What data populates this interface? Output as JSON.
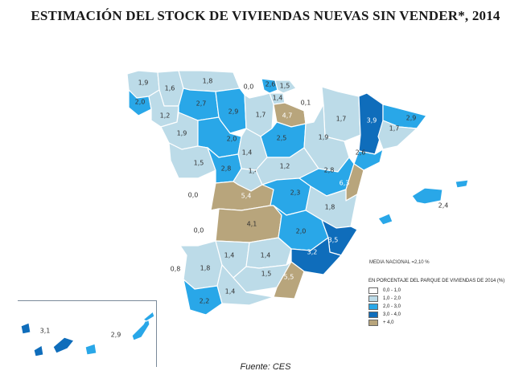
{
  "title": "ESTIMACIÓN DEL STOCK DE VIVIENDAS NUEVAS SIN VENDER*, 2014",
  "media_nacional": "MEDIA NACIONAL =2,10 %",
  "legend": {
    "title": "EN PORCENTAJE DEL PARQUE DE VIVIENDAS DE 2014 (%)",
    "items": [
      {
        "label": "0,0 - 1,0",
        "color": "#ffffff"
      },
      {
        "label": "1,0 - 2,0",
        "color": "#bcdbe8"
      },
      {
        "label": "2,0 - 3,0",
        "color": "#29a7e8"
      },
      {
        "label": "3,0 - 4,0",
        "color": "#0f6dbb"
      },
      {
        "label": "+ 4,0",
        "color": "#b8a57c"
      }
    ]
  },
  "source": "Fuente: CES",
  "provinces": [
    {
      "name": "A Coruña",
      "value": "1,9"
    },
    {
      "name": "Lugo",
      "value": "1,6"
    },
    {
      "name": "Asturias",
      "value": "1,8"
    },
    {
      "name": "Cantabria",
      "value": "0,0"
    },
    {
      "name": "Bizkaia",
      "value": "2,6"
    },
    {
      "name": "Gipuzkoa",
      "value": "1,5"
    },
    {
      "name": "Álava",
      "value": "1,4"
    },
    {
      "name": "Pontevedra",
      "value": "2,0"
    },
    {
      "name": "Ourense",
      "value": "1,2"
    },
    {
      "name": "León",
      "value": "2,7"
    },
    {
      "name": "Palencia",
      "value": "2,9"
    },
    {
      "name": "Burgos",
      "value": "1,7"
    },
    {
      "name": "La Rioja",
      "value": "4,7"
    },
    {
      "name": "Navarra",
      "value": "0,1"
    },
    {
      "name": "Huesca",
      "value": "1,7"
    },
    {
      "name": "Lleida",
      "value": "3,9"
    },
    {
      "name": "Girona",
      "value": "2,9"
    },
    {
      "name": "Barcelona",
      "value": "1,7"
    },
    {
      "name": "Tarragona",
      "value": "2,6"
    },
    {
      "name": "Zamora",
      "value": "1,9"
    },
    {
      "name": "Valladolid",
      "value": "2,0"
    },
    {
      "name": "Soria",
      "value": "2,5"
    },
    {
      "name": "Zaragoza",
      "value": "1,9"
    },
    {
      "name": "Salamanca",
      "value": "1,5"
    },
    {
      "name": "Segovia",
      "value": "1,4"
    },
    {
      "name": "Ávila",
      "value": "2,8"
    },
    {
      "name": "Madrid",
      "value": "1,4"
    },
    {
      "name": "Guadalajara",
      "value": "1,2"
    },
    {
      "name": "Teruel",
      "value": "2,8"
    },
    {
      "name": "Castellón",
      "value": "6,3"
    },
    {
      "name": "Cáceres",
      "value": "0,0"
    },
    {
      "name": "Toledo",
      "value": "5,4"
    },
    {
      "name": "Cuenca",
      "value": "2,3"
    },
    {
      "name": "Valencia",
      "value": "1,8"
    },
    {
      "name": "Badajoz",
      "value": "0,0"
    },
    {
      "name": "Ciudad Real",
      "value": "4,1"
    },
    {
      "name": "Albacete",
      "value": "2,0"
    },
    {
      "name": "Alicante",
      "value": "3,5"
    },
    {
      "name": "Murcia",
      "value": "3,2"
    },
    {
      "name": "Huelva",
      "value": "0,8"
    },
    {
      "name": "Sevilla",
      "value": "1,8"
    },
    {
      "name": "Córdoba",
      "value": "1,4"
    },
    {
      "name": "Jaén",
      "value": "1,4"
    },
    {
      "name": "Granada",
      "value": "1,5"
    },
    {
      "name": "Almería",
      "value": "5,5"
    },
    {
      "name": "Málaga",
      "value": "1,4"
    },
    {
      "name": "Cádiz",
      "value": "2,2"
    },
    {
      "name": "Illes Balears",
      "value": "2,4"
    },
    {
      "name": "Santa Cruz de Tenerife",
      "value": "3,1"
    },
    {
      "name": "Las Palmas",
      "value": "2,9"
    }
  ]
}
